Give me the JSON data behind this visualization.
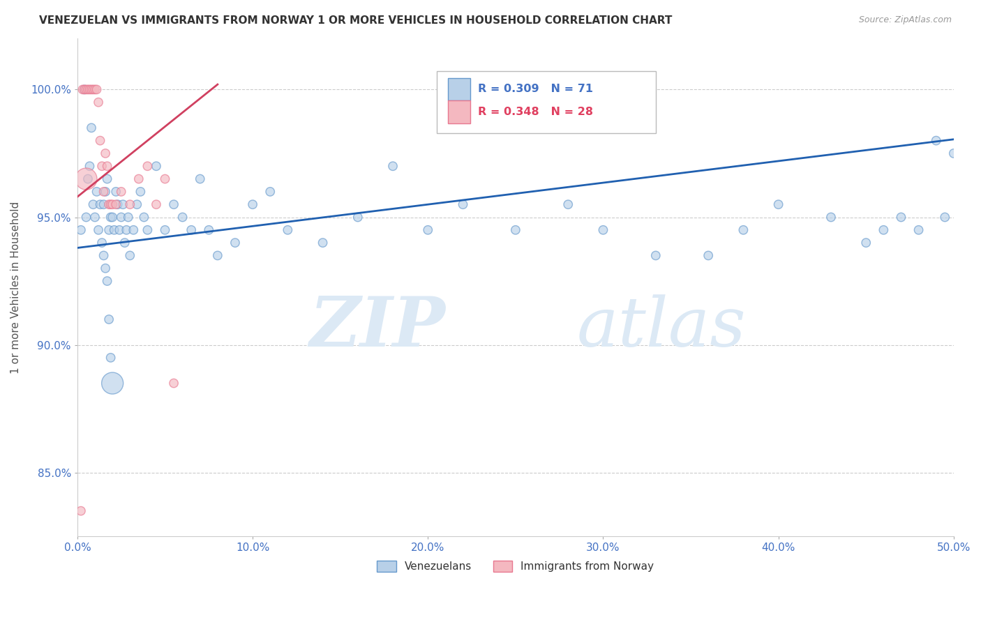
{
  "title": "VENEZUELAN VS IMMIGRANTS FROM NORWAY 1 OR MORE VEHICLES IN HOUSEHOLD CORRELATION CHART",
  "source": "Source: ZipAtlas.com",
  "ylabel": "1 or more Vehicles in Household",
  "xlabel": "",
  "xlim": [
    0.0,
    50.0
  ],
  "ylim": [
    82.5,
    102.0
  ],
  "yticks": [
    85.0,
    90.0,
    95.0,
    100.0
  ],
  "xticks": [
    0.0,
    10.0,
    20.0,
    30.0,
    40.0,
    50.0
  ],
  "xtick_labels": [
    "0.0%",
    "10.0%",
    "20.0%",
    "30.0%",
    "40.0%",
    "50.0%"
  ],
  "ytick_labels": [
    "85.0%",
    "90.0%",
    "95.0%",
    "100.0%"
  ],
  "blue_face": "#b8d0e8",
  "blue_edge": "#6699cc",
  "pink_face": "#f4b8c0",
  "pink_edge": "#e87890",
  "blue_line_color": "#2060b0",
  "pink_line_color": "#d04060",
  "title_color": "#333333",
  "axis_color": "#4472C4",
  "grid_color": "#cccccc",
  "watermark_color": "#dce9f5",
  "R_blue": 0.309,
  "N_blue": 71,
  "R_pink": 0.348,
  "N_pink": 28,
  "blue_intercept": 93.8,
  "blue_slope": 0.085,
  "pink_intercept": 95.8,
  "pink_slope": 0.55,
  "blue_x": [
    0.2,
    0.4,
    0.5,
    0.6,
    0.7,
    0.8,
    0.9,
    1.0,
    1.1,
    1.2,
    1.3,
    1.4,
    1.5,
    1.6,
    1.7,
    1.8,
    1.9,
    2.0,
    2.1,
    2.2,
    2.3,
    2.4,
    2.5,
    2.6,
    2.7,
    2.8,
    2.9,
    3.0,
    3.2,
    3.4,
    3.6,
    3.8,
    4.0,
    4.5,
    5.0,
    5.5,
    6.0,
    6.5,
    7.0,
    7.5,
    8.0,
    9.0,
    10.0,
    11.0,
    12.0,
    14.0,
    16.0,
    18.0,
    20.0,
    22.0,
    25.0,
    28.0,
    30.0,
    33.0,
    36.0,
    38.0,
    40.0,
    43.0,
    45.0,
    46.0,
    47.0,
    48.0,
    49.0,
    49.5,
    50.0,
    1.5,
    1.6,
    1.7,
    1.8,
    1.9,
    2.0
  ],
  "blue_y": [
    94.5,
    100.0,
    95.0,
    96.5,
    97.0,
    98.5,
    95.5,
    95.0,
    96.0,
    94.5,
    95.5,
    94.0,
    95.5,
    96.0,
    96.5,
    94.5,
    95.0,
    95.0,
    94.5,
    96.0,
    95.5,
    94.5,
    95.0,
    95.5,
    94.0,
    94.5,
    95.0,
    93.5,
    94.5,
    95.5,
    96.0,
    95.0,
    94.5,
    97.0,
    94.5,
    95.5,
    95.0,
    94.5,
    96.5,
    94.5,
    93.5,
    94.0,
    95.5,
    96.0,
    94.5,
    94.0,
    95.0,
    97.0,
    94.5,
    95.5,
    94.5,
    95.5,
    94.5,
    93.5,
    93.5,
    94.5,
    95.5,
    95.0,
    94.0,
    94.5,
    95.0,
    94.5,
    98.0,
    95.0,
    97.5,
    93.5,
    93.0,
    92.5,
    91.0,
    89.5,
    88.5
  ],
  "blue_size": [
    80,
    80,
    80,
    80,
    80,
    80,
    80,
    80,
    80,
    80,
    80,
    80,
    80,
    80,
    80,
    80,
    80,
    80,
    80,
    80,
    80,
    80,
    80,
    80,
    80,
    80,
    80,
    80,
    80,
    80,
    80,
    80,
    80,
    80,
    80,
    80,
    80,
    80,
    80,
    80,
    80,
    80,
    80,
    80,
    80,
    80,
    80,
    80,
    80,
    80,
    80,
    80,
    80,
    80,
    80,
    80,
    80,
    80,
    80,
    80,
    80,
    80,
    80,
    80,
    80,
    80,
    80,
    80,
    80,
    80,
    500
  ],
  "pink_x": [
    0.2,
    0.3,
    0.4,
    0.5,
    0.6,
    0.7,
    0.8,
    0.9,
    1.0,
    1.1,
    1.2,
    1.3,
    1.4,
    1.5,
    1.6,
    1.7,
    1.8,
    1.9,
    2.0,
    2.2,
    2.5,
    3.0,
    3.5,
    4.0,
    4.5,
    5.0,
    5.5,
    0.5
  ],
  "pink_y": [
    83.5,
    100.0,
    100.0,
    100.0,
    100.0,
    100.0,
    100.0,
    100.0,
    100.0,
    100.0,
    99.5,
    98.0,
    97.0,
    96.0,
    97.5,
    97.0,
    95.5,
    95.5,
    95.5,
    95.5,
    96.0,
    95.5,
    96.5,
    97.0,
    95.5,
    96.5,
    88.5,
    96.5
  ],
  "pink_size": [
    80,
    80,
    80,
    80,
    80,
    80,
    80,
    80,
    80,
    80,
    80,
    80,
    80,
    80,
    80,
    80,
    80,
    80,
    80,
    80,
    80,
    80,
    80,
    80,
    80,
    80,
    80,
    500
  ]
}
